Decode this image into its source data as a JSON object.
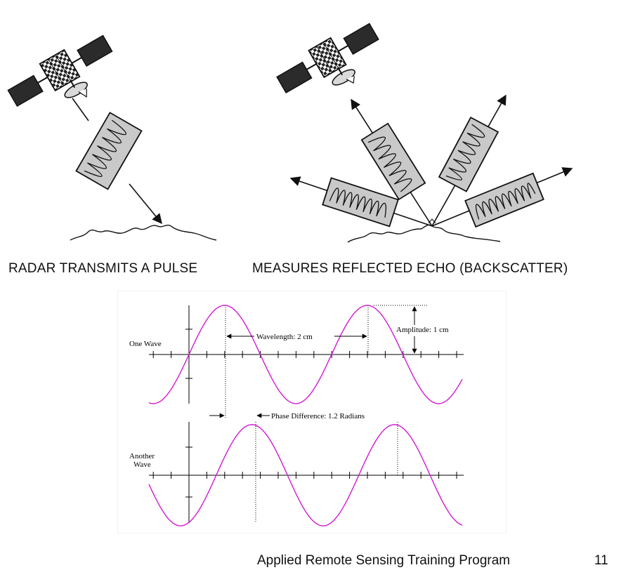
{
  "captions": {
    "transmit": "RADAR TRANSMITS A PULSE",
    "echo": "MEASURES REFLECTED ECHO (BACKSCATTER)"
  },
  "wave_diagram": {
    "one_wave_label": "One Wave",
    "another_wave_label_line1": "Another",
    "another_wave_label_line2": "Wave",
    "wavelength_label": "Wavelength: 2  cm",
    "amplitude_label": "Amplitude: 1  cm",
    "phase_label": "Phase Difference: 1.2 Radians",
    "wave_color": "#d21ad2",
    "wavelength_cm": 2,
    "amplitude_cm": 1,
    "phase_difference_rad": 1.2
  },
  "icons": {
    "satellite": "satellite-icon",
    "pulse": "radar-pulse-icon",
    "ground": "ground-surface-icon"
  },
  "footer": {
    "program": "Applied Remote Sensing Training Program",
    "page_number": "11"
  }
}
